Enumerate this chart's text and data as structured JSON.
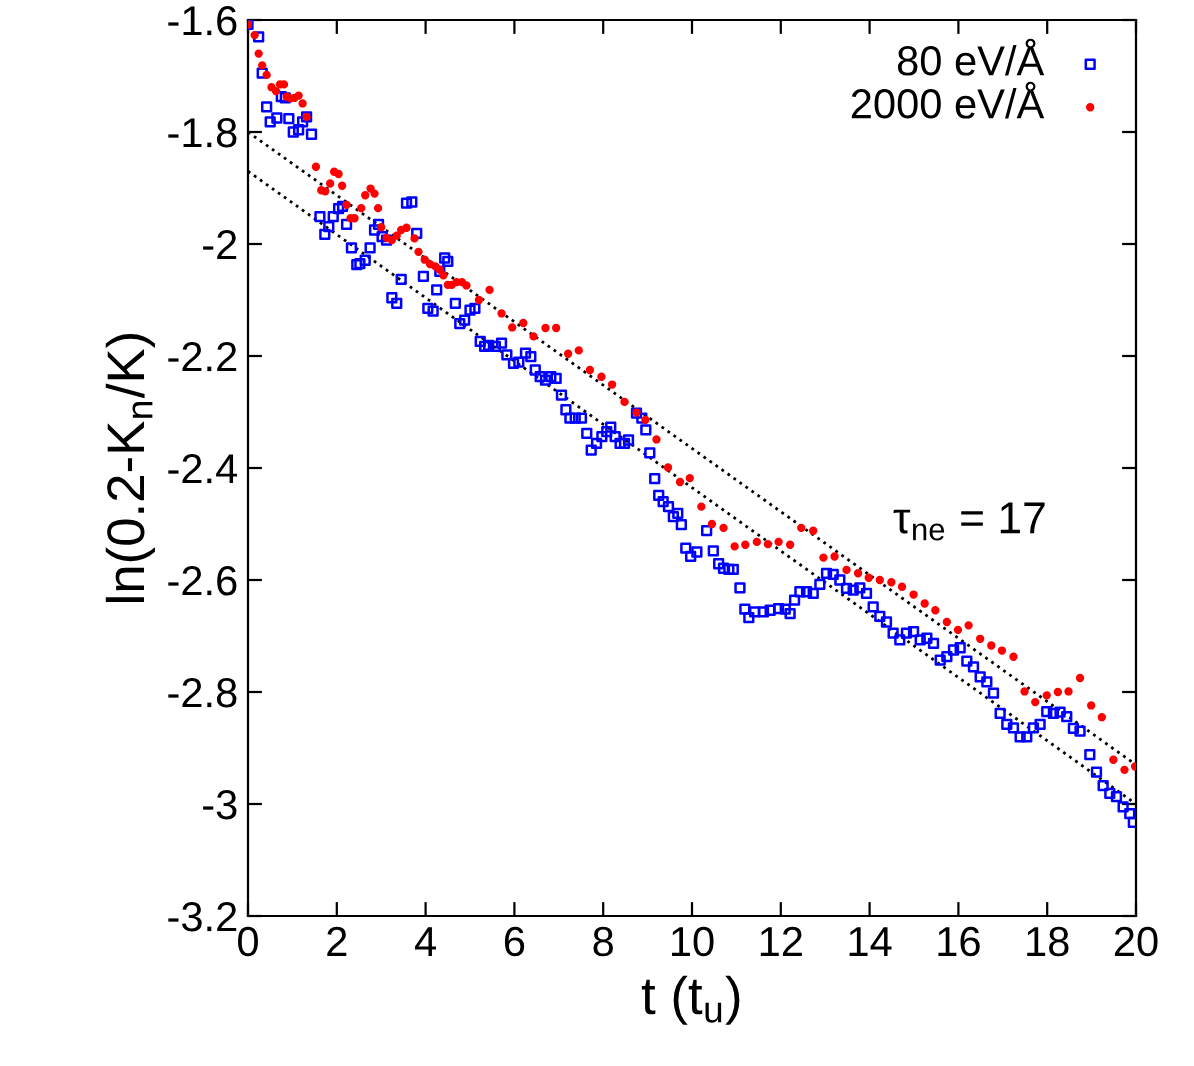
{
  "chart_data": {
    "type": "scatter",
    "xlabel": "t (t$_{u}$)",
    "ylabel": "ln(0.2-K$_{n}$/K)",
    "annotations": [
      "τ$_{ne}$ = 17"
    ],
    "xlim": [
      0,
      20
    ],
    "ylim": [
      -3.2,
      -1.6
    ],
    "xticks": [
      0,
      2,
      4,
      6,
      8,
      10,
      12,
      14,
      16,
      18,
      20
    ],
    "yticks": [
      -3.2,
      -3,
      -2.8,
      -2.6,
      -2.4,
      -2.2,
      -2,
      -1.8,
      -1.6
    ],
    "grid": false,
    "legend": "top right",
    "series": [
      {
        "name": "80 eV/Å",
        "color": "#0000ff",
        "marker": "square",
        "x": [
          0.0,
          0.24,
          0.32,
          0.42,
          0.5,
          0.65,
          0.75,
          0.84,
          0.92,
          1.02,
          1.14,
          1.23,
          1.32,
          1.43,
          1.62,
          1.73,
          1.82,
          1.92,
          2.04,
          2.13,
          2.22,
          2.33,
          2.45,
          2.52,
          2.64,
          2.75,
          2.85,
          2.94,
          3.02,
          3.12,
          3.24,
          3.35,
          3.45,
          3.57,
          3.69,
          3.8,
          3.95,
          4.05,
          4.17,
          4.25,
          4.32,
          4.43,
          4.5,
          4.67,
          4.77,
          4.88,
          5.0,
          5.11,
          5.23,
          5.33,
          5.42,
          5.57,
          5.71,
          5.83,
          5.98,
          6.1,
          6.25,
          6.37,
          6.47,
          6.58,
          6.7,
          6.82,
          6.94,
          7.06,
          7.16,
          7.25,
          7.37,
          7.51,
          7.63,
          7.73,
          7.85,
          7.97,
          8.08,
          8.17,
          8.27,
          8.38,
          8.48,
          8.57,
          8.75,
          8.87,
          8.96,
          9.05,
          9.16,
          9.25,
          9.35,
          9.47,
          9.58,
          9.68,
          9.76,
          9.86,
          9.97,
          10.11,
          10.33,
          10.48,
          10.6,
          10.71,
          10.83,
          10.93,
          11.08,
          11.19,
          11.28,
          11.41,
          11.61,
          11.76,
          11.95,
          12.1,
          12.21,
          12.31,
          12.43,
          12.58,
          12.73,
          12.88,
          13.03,
          13.18,
          13.33,
          13.48,
          13.63,
          13.78,
          13.93,
          14.08,
          14.23,
          14.38,
          14.53,
          14.68,
          14.83,
          14.99,
          15.14,
          15.29,
          15.44,
          15.59,
          15.74,
          15.89,
          16.04,
          16.19,
          16.34,
          16.49,
          16.64,
          16.79,
          16.94,
          17.09,
          17.24,
          17.39,
          17.54,
          17.69,
          17.84,
          17.99,
          18.14,
          18.29,
          18.44,
          18.59,
          18.74,
          18.96,
          19.11,
          19.26,
          19.41,
          19.56,
          19.71,
          19.86,
          19.94
        ],
        "values": [
          -1.608,
          -1.63,
          -1.695,
          -1.755,
          -1.782,
          -1.775,
          -1.737,
          -1.739,
          -1.776,
          -1.8,
          -1.796,
          -1.782,
          -1.773,
          -1.804,
          -1.951,
          -1.983,
          -1.969,
          -1.951,
          -1.937,
          -1.933,
          -1.965,
          -2.007,
          -2.037,
          -2.035,
          -2.029,
          -2.007,
          -1.975,
          -1.965,
          -1.987,
          -1.993,
          -2.096,
          -2.106,
          -2.063,
          -1.927,
          -1.925,
          -1.981,
          -2.058,
          -2.115,
          -2.12,
          -2.082,
          -2.049,
          -2.025,
          -2.031,
          -2.106,
          -2.142,
          -2.136,
          -2.118,
          -2.115,
          -2.174,
          -2.183,
          -2.181,
          -2.183,
          -2.177,
          -2.198,
          -2.213,
          -2.211,
          -2.195,
          -2.201,
          -2.225,
          -2.237,
          -2.243,
          -2.237,
          -2.24,
          -2.27,
          -2.296,
          -2.311,
          -2.311,
          -2.311,
          -2.338,
          -2.368,
          -2.356,
          -2.344,
          -2.335,
          -2.327,
          -2.344,
          -2.356,
          -2.356,
          -2.35,
          -2.302,
          -2.311,
          -2.332,
          -2.373,
          -2.419,
          -2.449,
          -2.46,
          -2.469,
          -2.487,
          -2.481,
          -2.501,
          -2.543,
          -2.558,
          -2.55,
          -2.512,
          -2.548,
          -2.571,
          -2.579,
          -2.581,
          -2.581,
          -2.614,
          -2.652,
          -2.667,
          -2.657,
          -2.657,
          -2.654,
          -2.651,
          -2.652,
          -2.66,
          -2.636,
          -2.621,
          -2.621,
          -2.624,
          -2.608,
          -2.588,
          -2.59,
          -2.6,
          -2.615,
          -2.618,
          -2.614,
          -2.624,
          -2.648,
          -2.665,
          -2.675,
          -2.695,
          -2.707,
          -2.695,
          -2.692,
          -2.707,
          -2.704,
          -2.713,
          -2.743,
          -2.737,
          -2.725,
          -2.721,
          -2.745,
          -2.755,
          -2.773,
          -2.782,
          -2.802,
          -2.838,
          -2.858,
          -2.864,
          -2.88,
          -2.88,
          -2.864,
          -2.858,
          -2.835,
          -2.838,
          -2.836,
          -2.844,
          -2.865,
          -2.87,
          -2.912,
          -2.943,
          -2.967,
          -2.981,
          -2.987,
          -3.005,
          -3.017,
          -3.033
        ]
      },
      {
        "name": "2000 eV/Å",
        "color": "#ff0000",
        "marker": "circle",
        "x": [
          0.0,
          0.15,
          0.24,
          0.32,
          0.42,
          0.53,
          0.63,
          0.72,
          0.81,
          0.87,
          0.96,
          1.05,
          1.14,
          1.23,
          1.32,
          1.53,
          1.65,
          1.74,
          1.85,
          1.94,
          2.04,
          2.12,
          2.22,
          2.31,
          2.4,
          2.55,
          2.64,
          2.76,
          2.85,
          2.93,
          3.0,
          3.12,
          3.24,
          3.35,
          3.45,
          3.57,
          3.75,
          3.84,
          3.98,
          4.1,
          4.22,
          4.32,
          4.4,
          4.5,
          4.59,
          4.7,
          4.82,
          4.92,
          5.2,
          5.44,
          5.71,
          5.95,
          6.2,
          6.43,
          6.7,
          6.94,
          7.21,
          7.45,
          7.7,
          7.96,
          8.2,
          8.48,
          8.75,
          8.95,
          9.2,
          9.46,
          9.73,
          9.95,
          10.21,
          10.45,
          10.71,
          10.96,
          11.2,
          11.46,
          11.71,
          11.95,
          12.21,
          12.46,
          12.73,
          12.96,
          13.21,
          13.48,
          13.74,
          13.98,
          14.23,
          14.49,
          14.73,
          14.99,
          15.24,
          15.48,
          15.74,
          15.99,
          16.23,
          16.49,
          16.74,
          16.98,
          17.24,
          17.49,
          17.73,
          17.99,
          18.24,
          18.48,
          18.74,
          18.99,
          19.23,
          19.49,
          19.74,
          19.98
        ],
        "values": [
          -1.608,
          -1.627,
          -1.66,
          -1.681,
          -1.698,
          -1.72,
          -1.727,
          -1.715,
          -1.715,
          -1.737,
          -1.74,
          -1.739,
          -1.735,
          -1.749,
          -1.773,
          -1.862,
          -1.904,
          -1.906,
          -1.892,
          -1.871,
          -1.875,
          -1.896,
          -1.93,
          -1.954,
          -1.954,
          -1.936,
          -1.913,
          -1.901,
          -1.91,
          -1.936,
          -1.97,
          -1.989,
          -1.993,
          -1.985,
          -1.975,
          -1.971,
          -1.99,
          -2.014,
          -2.028,
          -2.036,
          -2.04,
          -2.046,
          -2.056,
          -2.073,
          -2.073,
          -2.068,
          -2.068,
          -2.074,
          -2.1,
          -2.082,
          -2.124,
          -2.149,
          -2.141,
          -2.165,
          -2.15,
          -2.15,
          -2.196,
          -2.19,
          -2.225,
          -2.237,
          -2.251,
          -2.282,
          -2.301,
          -2.314,
          -2.349,
          -2.399,
          -2.425,
          -2.418,
          -2.469,
          -2.5,
          -2.507,
          -2.54,
          -2.537,
          -2.532,
          -2.536,
          -2.532,
          -2.537,
          -2.507,
          -2.512,
          -2.56,
          -2.558,
          -2.582,
          -2.588,
          -2.596,
          -2.6,
          -2.604,
          -2.612,
          -2.626,
          -2.642,
          -2.654,
          -2.675,
          -2.689,
          -2.681,
          -2.705,
          -2.717,
          -2.726,
          -2.737,
          -2.799,
          -2.818,
          -2.806,
          -2.8,
          -2.799,
          -2.775,
          -2.824,
          -2.845,
          -2.921,
          -2.939,
          -2.933
        ]
      },
      {
        "type": "line",
        "color": "#000000",
        "line_style": "dotted",
        "marker": "none",
        "x": [
          0,
          20
        ],
        "values": [
          -1.8,
          -2.93
        ]
      },
      {
        "type": "line",
        "color": "#000000",
        "line_style": "dotted",
        "marker": "none",
        "x": [
          0,
          20
        ],
        "values": [
          -1.87,
          -3.0
        ]
      }
    ]
  }
}
